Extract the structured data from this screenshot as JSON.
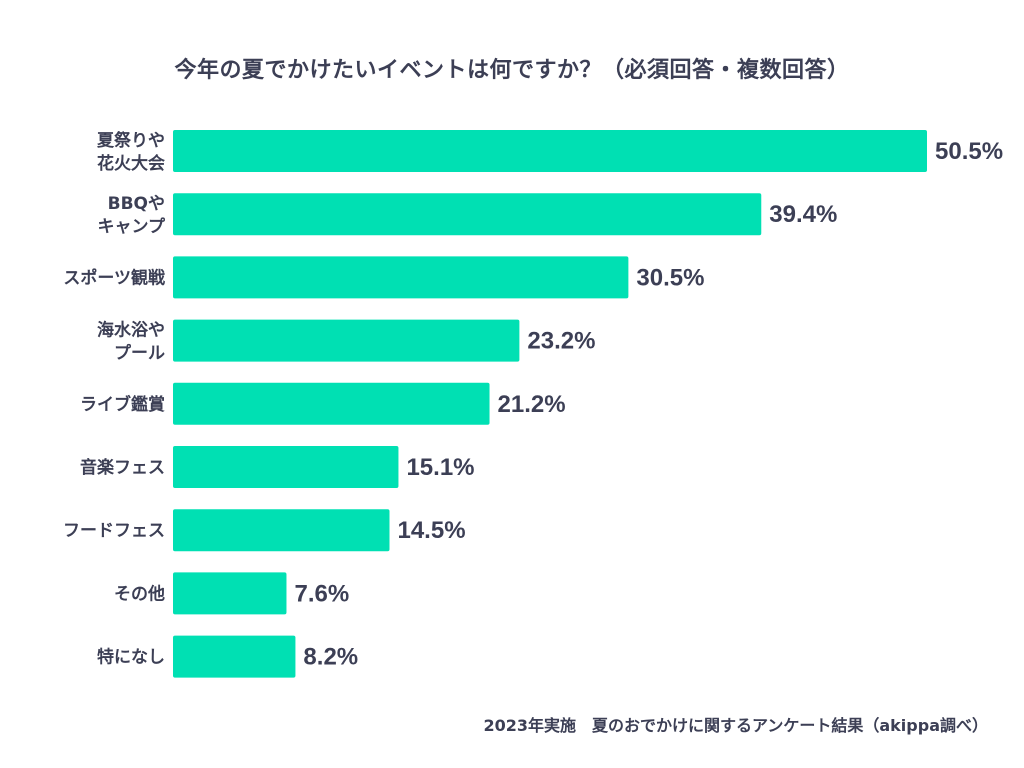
{
  "chart_data": {
    "type": "bar",
    "orientation": "horizontal",
    "title": "今年の夏でかけたいイベントは何ですか？（必須回答・複数回答）",
    "categories": [
      [
        "夏祭りや",
        "花火大会"
      ],
      [
        "BBQや",
        "キャンプ"
      ],
      [
        "スポーツ観戦"
      ],
      [
        "海水浴や",
        "プール"
      ],
      [
        "ライブ鑑賞"
      ],
      [
        "音楽フェス"
      ],
      [
        "フードフェス"
      ],
      [
        "その他"
      ],
      [
        "特になし"
      ]
    ],
    "values": [
      50.5,
      39.4,
      30.5,
      23.2,
      21.2,
      15.1,
      14.5,
      7.6,
      8.2
    ],
    "value_labels": [
      "50.5%",
      "39.4%",
      "30.5%",
      "23.2%",
      "21.2%",
      "15.1%",
      "14.5%",
      "7.6%",
      "8.2%"
    ],
    "xlabel": "",
    "ylabel": "",
    "xlim": [
      0,
      50.5
    ],
    "grid": false,
    "legend": "none",
    "bar_color": "#00e0b3",
    "text_color": "#3c3f55",
    "footer": "2023年実施　夏のおでかけに関するアンケート結果（akippa調べ）"
  }
}
